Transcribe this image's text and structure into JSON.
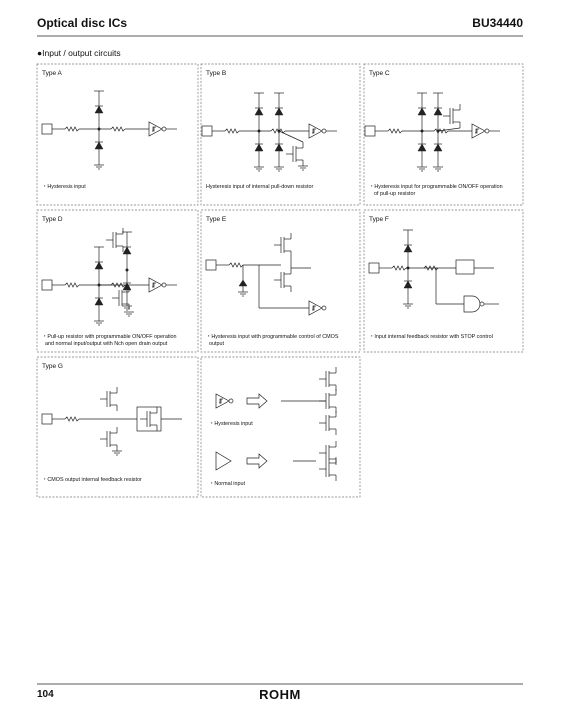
{
  "header": {
    "title": "Optical disc ICs",
    "part": "BU34440"
  },
  "section": "●Input / output circuits",
  "circuits": [
    {
      "label": "Type A",
      "caption": [
        "・Hysteresis input"
      ]
    },
    {
      "label": "Type B",
      "caption": [
        "Hysteresis input of internal pull-down resistor"
      ]
    },
    {
      "label": "Type C",
      "caption": [
        "・Hysteresis input for programmable ON/OFF operation",
        "of pull-up resistor"
      ]
    },
    {
      "label": "Type D",
      "caption": [
        "・Pull-up resistor with programmable ON/OFF operation",
        "and normal input/output with Nch open drain output"
      ]
    },
    {
      "label": "Type E",
      "caption": [
        "・Hysteresis input with programmable control of CMOS",
        "output"
      ]
    },
    {
      "label": "Type F",
      "caption": [
        "・Input internal feedback resistor with STOP control"
      ]
    },
    {
      "label": "Type G",
      "caption": [
        "・CMOS output internal feedback resistor"
      ]
    }
  ],
  "legend": {
    "items": [
      "・Hysteresis input",
      "・Normal input"
    ]
  },
  "footer": {
    "page": "104",
    "logo": "ROHM"
  }
}
